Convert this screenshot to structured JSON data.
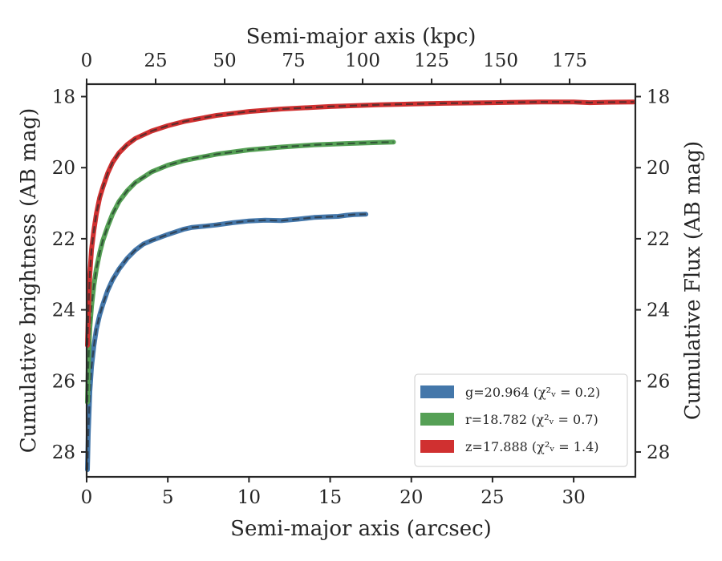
{
  "chart_data": {
    "type": "line",
    "title": "",
    "xlabel": "Semi-major axis (arcsec)",
    "xlabel_top": "Semi-major axis (kpc)",
    "ylabel": "Cumulative brightness (AB mag)",
    "ylabel_right": "Cumulative Flux (AB mag)",
    "xlim": [
      0,
      33.8
    ],
    "ylim": [
      28.7,
      17.65
    ],
    "y_inverted": true,
    "grid": false,
    "legend_position": "lower right",
    "x_ticks": [
      0,
      5,
      10,
      15,
      20,
      25,
      30
    ],
    "y_ticks": [
      18,
      20,
      22,
      24,
      26,
      28
    ],
    "top_ticks": [
      {
        "label": "0",
        "x": 0
      },
      {
        "label": "25",
        "x": 4.25
      },
      {
        "label": "50",
        "x": 8.5
      },
      {
        "label": "75",
        "x": 12.75
      },
      {
        "label": "100",
        "x": 17.0
      },
      {
        "label": "125",
        "x": 21.25
      },
      {
        "label": "150",
        "x": 25.5
      },
      {
        "label": "175",
        "x": 29.75
      }
    ],
    "series": [
      {
        "name": "g",
        "legend": "g=20.964 (χ²ᵥ = 0.2)",
        "color": "#4477aa",
        "model_color": "#2b3a4a",
        "x": [
          0.05,
          0.1,
          0.15,
          0.2,
          0.3,
          0.45,
          0.6,
          0.8,
          1.0,
          1.3,
          1.6,
          2.0,
          2.5,
          3.0,
          3.5,
          4.0,
          5.0,
          6.0,
          6.5,
          7.0,
          8.0,
          9.0,
          10.0,
          11.0,
          12.0,
          13.0,
          14.0,
          15.0,
          15.5,
          16.0,
          16.5,
          17.2
        ],
        "values": [
          28.5,
          27.5,
          26.9,
          26.3,
          25.6,
          25.0,
          24.55,
          24.15,
          23.85,
          23.45,
          23.15,
          22.85,
          22.55,
          22.32,
          22.15,
          22.05,
          21.88,
          21.73,
          21.68,
          21.66,
          21.61,
          21.55,
          21.5,
          21.48,
          21.49,
          21.45,
          21.4,
          21.38,
          21.37,
          21.34,
          21.32,
          21.31
        ]
      },
      {
        "name": "r",
        "legend": "r=18.782 (χ²ᵥ = 0.7)",
        "color": "#55a055",
        "model_color": "#2b4a33",
        "x": [
          0.05,
          0.1,
          0.15,
          0.2,
          0.3,
          0.45,
          0.6,
          0.8,
          1.0,
          1.3,
          1.6,
          2.0,
          2.5,
          3.0,
          4.0,
          5.0,
          6.0,
          8.0,
          10.0,
          12.0,
          14.0,
          16.0,
          18.0,
          18.9
        ],
        "values": [
          26.6,
          25.6,
          25.0,
          24.5,
          23.9,
          23.3,
          22.85,
          22.4,
          22.05,
          21.65,
          21.3,
          20.95,
          20.65,
          20.42,
          20.12,
          19.93,
          19.8,
          19.62,
          19.5,
          19.42,
          19.36,
          19.32,
          19.29,
          19.28
        ]
      },
      {
        "name": "z",
        "legend": "z=17.888 (χ²ᵥ = 1.4)",
        "color": "#d03030",
        "model_color": "#4a2b2b",
        "x": [
          0.05,
          0.1,
          0.15,
          0.2,
          0.3,
          0.45,
          0.6,
          0.8,
          1.0,
          1.3,
          1.6,
          2.0,
          2.5,
          3.0,
          4.0,
          5.0,
          6.0,
          8.0,
          10.0,
          12.0,
          15.0,
          18.0,
          20.0,
          22.0,
          25.0,
          28.0,
          30.0,
          31.0,
          32.0,
          33.7
        ],
        "values": [
          25.0,
          24.2,
          23.5,
          23.0,
          22.3,
          21.75,
          21.3,
          20.85,
          20.55,
          20.15,
          19.85,
          19.58,
          19.35,
          19.18,
          18.97,
          18.82,
          18.7,
          18.53,
          18.42,
          18.35,
          18.28,
          18.23,
          18.21,
          18.19,
          18.17,
          18.15,
          18.15,
          18.17,
          18.16,
          18.15
        ]
      }
    ]
  }
}
